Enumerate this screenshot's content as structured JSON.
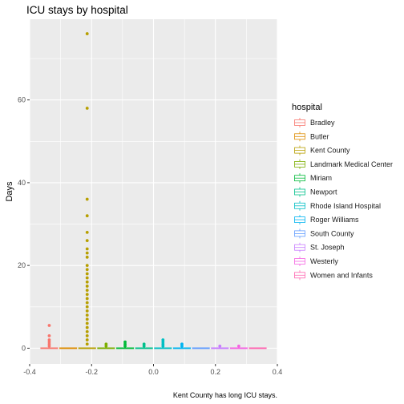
{
  "chart_data": {
    "type": "boxplot",
    "title": "ICU stays by hospital",
    "xlabel": "",
    "ylabel": "Days",
    "caption": "Kent County has long ICU stays.",
    "xlim": [
      -0.4,
      0.4
    ],
    "ylim": [
      -3.8,
      79.5
    ],
    "x_ticks": [
      -0.4,
      -0.2,
      0.0,
      0.2,
      0.4
    ],
    "x_tick_labels": [
      "-0.4",
      "-0.2",
      "0.0",
      "0.2",
      "0.4"
    ],
    "y_ticks": [
      0,
      20,
      40,
      60
    ],
    "y_tick_labels": [
      "0",
      "20",
      "40",
      "60"
    ],
    "grid": true,
    "legend": {
      "title": "hospital",
      "position": "right"
    },
    "series": [
      {
        "name": "Bradley",
        "color": "#F8766D",
        "x_center": -0.3367,
        "box": {
          "q1": 0,
          "median": 0,
          "q3": 0
        },
        "outliers": [
          0.5,
          1,
          1.5,
          2,
          3,
          5.5
        ]
      },
      {
        "name": "Butler",
        "color": "#DE8C00",
        "x_center": -0.2755,
        "box": {
          "q1": 0,
          "median": 0,
          "q3": 0
        },
        "outliers": []
      },
      {
        "name": "Kent County",
        "color": "#B79F00",
        "x_center": -0.2143,
        "box": {
          "q1": 0,
          "median": 0,
          "q3": 0
        },
        "outliers": [
          1,
          2,
          3,
          4,
          5,
          6,
          7,
          8,
          9,
          10,
          11,
          12,
          13,
          14,
          15,
          16,
          17,
          18,
          19,
          20,
          22,
          23,
          24,
          26,
          28,
          32,
          36,
          58,
          76
        ]
      },
      {
        "name": "Landmark Medical Center",
        "color": "#7CAE00",
        "x_center": -0.1531,
        "box": {
          "q1": 0,
          "median": 0,
          "q3": 0
        },
        "outliers": [
          0.5,
          1
        ]
      },
      {
        "name": "Miriam",
        "color": "#00BA38",
        "x_center": -0.0918,
        "box": {
          "q1": 0,
          "median": 0,
          "q3": 0
        },
        "outliers": [
          0.5,
          1,
          1.5
        ]
      },
      {
        "name": "Newport",
        "color": "#00C08B",
        "x_center": -0.0306,
        "box": {
          "q1": 0,
          "median": 0,
          "q3": 0
        },
        "outliers": [
          0.5,
          1
        ]
      },
      {
        "name": "Rhode Island Hospital",
        "color": "#00BFC4",
        "x_center": 0.0306,
        "box": {
          "q1": 0,
          "median": 0,
          "q3": 0
        },
        "outliers": [
          0.5,
          1,
          1.5,
          2
        ]
      },
      {
        "name": "Roger Williams",
        "color": "#00B4F0",
        "x_center": 0.0918,
        "box": {
          "q1": 0,
          "median": 0,
          "q3": 0
        },
        "outliers": [
          0.5,
          1
        ]
      },
      {
        "name": "South County",
        "color": "#619CFF",
        "x_center": 0.1531,
        "box": {
          "q1": 0,
          "median": 0,
          "q3": 0
        },
        "outliers": []
      },
      {
        "name": "St. Joseph",
        "color": "#C77CFF",
        "x_center": 0.2143,
        "box": {
          "q1": 0,
          "median": 0,
          "q3": 0
        },
        "outliers": [
          0.5
        ]
      },
      {
        "name": "Westerly",
        "color": "#F564E3",
        "x_center": 0.2755,
        "box": {
          "q1": 0,
          "median": 0,
          "q3": 0
        },
        "outliers": [
          0.5
        ]
      },
      {
        "name": "Women and Infants",
        "color": "#FF64B0",
        "x_center": 0.3367,
        "box": {
          "q1": 0,
          "median": 0,
          "q3": 0
        },
        "outliers": []
      }
    ]
  }
}
